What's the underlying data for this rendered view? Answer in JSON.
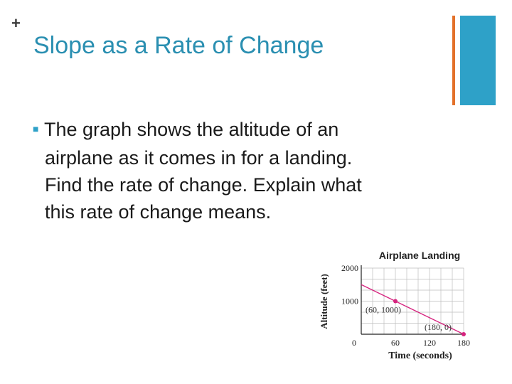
{
  "slide": {
    "plus": "+",
    "title": "Slope as a Rate of Change",
    "body_lines": [
      "The graph shows the altitude of an",
      "airplane as it comes in for a landing.",
      "Find the rate of change.  Explain what",
      "this rate of change means."
    ],
    "bullet_glyph": "■",
    "accent_colors": {
      "title": "#2a8fb1",
      "bar_blue": "#2ea1c8",
      "bar_orange": "#e3712a"
    }
  },
  "chart_data": {
    "type": "line",
    "title": "Airplane Landing",
    "xlabel": "Time (seconds)",
    "ylabel": "Altitude (feet)",
    "xlim": [
      0,
      180
    ],
    "ylim": [
      0,
      2000
    ],
    "x_ticks": [
      "0",
      "60",
      "120",
      "180"
    ],
    "y_ticks": [
      "1000",
      "2000"
    ],
    "grid": true,
    "series": [
      {
        "points": [
          [
            0,
            1500
          ],
          [
            60,
            1000
          ],
          [
            180,
            0
          ]
        ],
        "color": "#d6247f"
      }
    ],
    "annotations": [
      "(60, 1000)",
      "(180, 0)"
    ]
  }
}
